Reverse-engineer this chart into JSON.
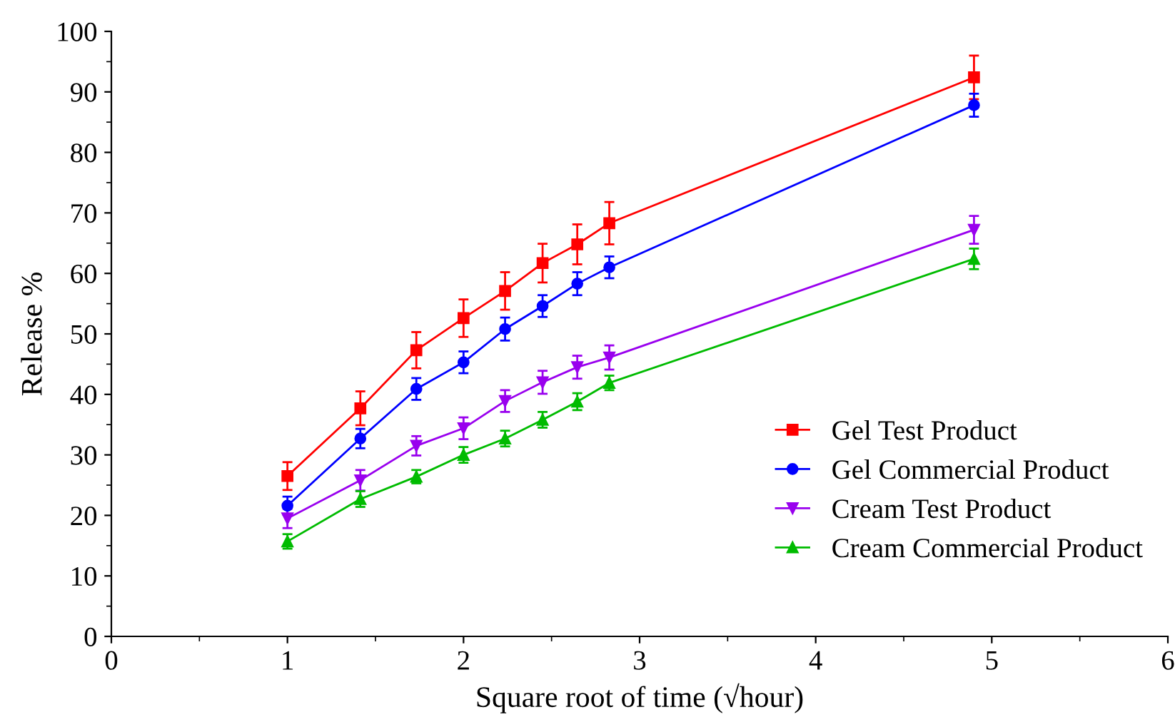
{
  "chart_data": {
    "type": "line",
    "xlabel": "Square root of time (√hour)",
    "ylabel": "Release %",
    "xlim": [
      0,
      6
    ],
    "xticks": [
      0,
      1,
      2,
      3,
      4,
      5,
      6
    ],
    "ylim": [
      0,
      100
    ],
    "yticks": [
      0,
      10,
      20,
      30,
      40,
      50,
      60,
      70,
      80,
      90,
      100
    ],
    "grid": false,
    "legend": "bottom right",
    "series": [
      {
        "name": "Gel Test Product",
        "color": "#ff0000",
        "marker": "square",
        "x": [
          1,
          1.414,
          1.732,
          2,
          2.236,
          2.449,
          2.646,
          2.828,
          4.899
        ],
        "values": [
          26.5,
          37.7,
          47.3,
          52.6,
          57.1,
          61.7,
          64.8,
          68.3,
          92.4
        ],
        "errors": [
          2.3,
          2.8,
          3.0,
          3.1,
          3.1,
          3.2,
          3.3,
          3.5,
          3.6
        ]
      },
      {
        "name": "Gel Commercial Product",
        "color": "#0000ff",
        "marker": "circle",
        "x": [
          1,
          1.414,
          1.732,
          2,
          2.236,
          2.449,
          2.646,
          2.828,
          4.899
        ],
        "values": [
          21.6,
          32.7,
          40.9,
          45.3,
          50.8,
          54.6,
          58.3,
          61.0,
          87.8
        ],
        "errors": [
          1.5,
          1.6,
          1.8,
          1.8,
          1.9,
          1.8,
          1.9,
          1.8,
          1.9
        ]
      },
      {
        "name": "Cream Test Product",
        "color": "#9900ee",
        "marker": "triangle_down",
        "x": [
          1,
          1.414,
          1.732,
          2,
          2.236,
          2.449,
          2.646,
          2.828,
          4.899
        ],
        "values": [
          19.5,
          25.8,
          31.5,
          34.4,
          38.9,
          42.0,
          44.5,
          46.1,
          67.2
        ],
        "errors": [
          1.6,
          1.7,
          1.6,
          1.8,
          1.8,
          1.9,
          1.9,
          2.0,
          2.3
        ]
      },
      {
        "name": "Cream Commercial Product",
        "color": "#00bb00",
        "marker": "triangle",
        "x": [
          1,
          1.414,
          1.732,
          2,
          2.236,
          2.449,
          2.646,
          2.828,
          4.899
        ],
        "values": [
          15.7,
          22.7,
          26.4,
          30.0,
          32.7,
          35.8,
          38.8,
          41.9,
          62.4
        ],
        "errors": [
          1.2,
          1.3,
          1.1,
          1.3,
          1.3,
          1.3,
          1.4,
          1.2,
          1.7
        ]
      }
    ]
  }
}
